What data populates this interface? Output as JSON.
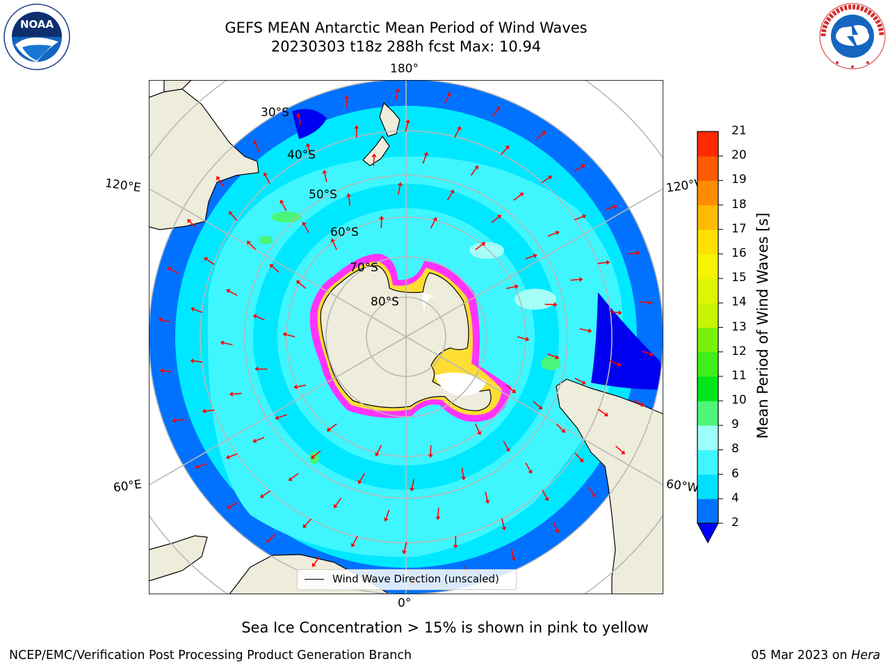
{
  "header": {
    "title_line1": "GEFS MEAN Antarctic Mean Period of Wind Waves",
    "title_line2": "20230303 t18z 288h fcst   Max: 10.94"
  },
  "logos": {
    "left": {
      "name": "noaa-logo",
      "text": "NOAA",
      "ring_text": "NATIONAL OCEANIC AND ATMOSPHERIC ADMINISTRATION · U.S. DEPARTMENT OF COMMERCE"
    },
    "right": {
      "name": "nws-logo",
      "ring_text": "NATIONAL WEATHER SERVICE"
    }
  },
  "map": {
    "projection": "south-polar-stereographic",
    "lon_labels": {
      "top": "180°",
      "bottom": "0°",
      "upper_left": "120°E",
      "upper_right": "120°W",
      "lower_left": "60°E",
      "lower_right": "60°W"
    },
    "lat_labels": [
      "30°S",
      "40°S",
      "50°S",
      "60°S",
      "70°S",
      "80°S"
    ],
    "colors": {
      "ocean_dark": "#0000f0",
      "ocean_blue": "#006bff",
      "ocean_cyan": "#00e8ff",
      "ocean_light_cyan": "#3ff7ff",
      "ocean_pale": "#a5fff6",
      "ocean_green": "#4af57a",
      "land": "#eeecdb",
      "ice_pink": "#ff33ff",
      "ice_yellow": "#ffdd33",
      "arrow": "#ff0000",
      "grid": "#b8b8b8"
    },
    "legend_label": "Wind Wave Direction (unscaled)"
  },
  "colorbar": {
    "label": "Mean Period of Wind Waves [s]",
    "ticks": [
      "2",
      "4",
      "6",
      "8",
      "9",
      "10",
      "11",
      "12",
      "13",
      "14",
      "15",
      "16",
      "17",
      "18",
      "19",
      "20",
      "21"
    ],
    "colors": [
      "#0072ff",
      "#00e0ff",
      "#3ff6ff",
      "#9dfffa",
      "#4ef578",
      "#00e61a",
      "#3fee1a",
      "#78f20a",
      "#c8f500",
      "#e0f500",
      "#f5f500",
      "#ffe000",
      "#ffbb00",
      "#ff8c00",
      "#ff5a00",
      "#ff2a00"
    ],
    "extend_color": "#0000ff"
  },
  "captions": {
    "ice_note": "Sea Ice Concentration > 15% is shown in pink to yellow",
    "credit": "NCEP/EMC/Verification Post Processing Product Generation Branch",
    "date_prefix": "05 Mar 2023 on ",
    "date_machine": "Hera"
  }
}
